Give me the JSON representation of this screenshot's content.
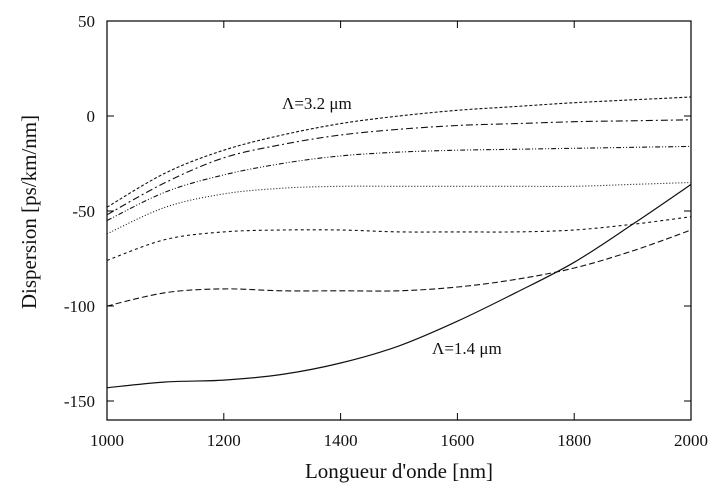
{
  "chart_data": {
    "type": "line",
    "xlabel": "Longueur d'onde [nm]",
    "ylabel": "Dispersion [ps/km/nm]",
    "xlim": [
      1000,
      2000
    ],
    "ylim": [
      -160,
      50
    ],
    "xticks": [
      "1000",
      "1200",
      "1400",
      "1600",
      "1800",
      "2000"
    ],
    "yticks": [
      "50",
      "0",
      "-50",
      "-100",
      "-150"
    ],
    "x": [
      1000,
      1100,
      1200,
      1300,
      1400,
      1500,
      1600,
      1700,
      1800,
      1900,
      2000
    ],
    "annotations": [
      "Λ=3.2 μm",
      "Λ=1.4 μm"
    ],
    "series": [
      {
        "dash": "3 2",
        "values": [
          -48,
          -30,
          -18,
          -10,
          -4,
          0,
          3,
          5,
          7,
          8.5,
          10
        ]
      },
      {
        "dash": "7 3 2 3",
        "values": [
          -52,
          -35,
          -22,
          -15,
          -10,
          -7,
          -5,
          -4,
          -3,
          -2.5,
          -2
        ]
      },
      {
        "dash": "5 2 1 2 1 2",
        "values": [
          -55,
          -40,
          -31,
          -25,
          -21,
          -19,
          -18,
          -17.5,
          -17,
          -16.5,
          -16
        ]
      },
      {
        "dash": "1 2",
        "values": [
          -62,
          -48,
          -41,
          -38,
          -37,
          -37,
          -37,
          -37,
          -37,
          -36,
          -35
        ]
      },
      {
        "dash": "3 3",
        "values": [
          -76,
          -65,
          -61,
          -60,
          -60,
          -61,
          -61,
          -61,
          -60,
          -57,
          -53
        ]
      },
      {
        "dash": "6 3",
        "values": [
          -100,
          -93,
          -91,
          -92,
          -92,
          -92,
          -90,
          -86,
          -80,
          -71,
          -60
        ]
      },
      {
        "dash": "",
        "values": [
          -143,
          -140,
          -139,
          -136,
          -130,
          -121,
          -108,
          -93,
          -77,
          -57,
          -36
        ]
      }
    ]
  }
}
